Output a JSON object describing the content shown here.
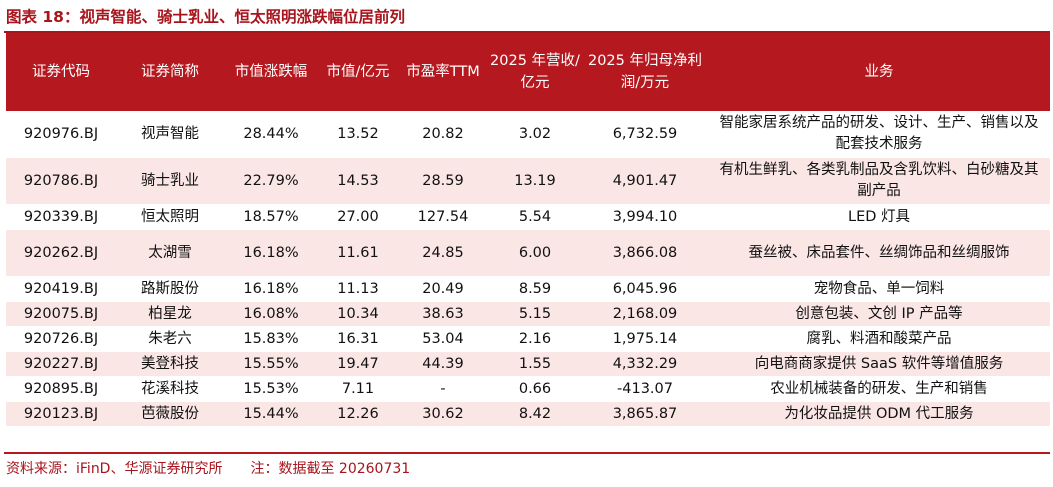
{
  "title": "图表 18：视声智能、骑士乳业、恒太照明涨跌幅位居前列",
  "table": {
    "headers": [
      "证券代码",
      "证券简称",
      "市值涨跌幅",
      "市值/亿元",
      "市盈率TTM",
      "2025 年营收/亿元",
      "2025 年归母净利润/万元",
      "业务"
    ],
    "rows": [
      {
        "code": "920976.BJ",
        "name": "视声智能",
        "change": "28.44%",
        "mktcap": "13.52",
        "pe": "20.82",
        "revenue": "3.02",
        "profit": "6,732.59",
        "business": "智能家居系统产品的研发、设计、生产、销售以及配套技术服务"
      },
      {
        "code": "920786.BJ",
        "name": "骑士乳业",
        "change": "22.79%",
        "mktcap": "14.53",
        "pe": "28.59",
        "revenue": "13.19",
        "profit": "4,901.47",
        "business": "有机生鲜乳、各类乳制品及含乳饮料、白砂糖及其副产品"
      },
      {
        "code": "920339.BJ",
        "name": "恒太照明",
        "change": "18.57%",
        "mktcap": "27.00",
        "pe": "127.54",
        "revenue": "5.54",
        "profit": "3,994.10",
        "business": "LED 灯具"
      },
      {
        "code": "920262.BJ",
        "name": "太湖雪",
        "change": "16.18%",
        "mktcap": "11.61",
        "pe": "24.85",
        "revenue": "6.00",
        "profit": "3,866.08",
        "business": "蚕丝被、床品套件、丝绸饰品和丝绸服饰"
      },
      {
        "code": "920419.BJ",
        "name": "路斯股份",
        "change": "16.18%",
        "mktcap": "11.13",
        "pe": "20.49",
        "revenue": "8.59",
        "profit": "6,045.96",
        "business": "宠物食品、单一饲料"
      },
      {
        "code": "920075.BJ",
        "name": "柏星龙",
        "change": "16.08%",
        "mktcap": "10.34",
        "pe": "38.63",
        "revenue": "5.15",
        "profit": "2,168.09",
        "business": "创意包装、文创 IP 产品等"
      },
      {
        "code": "920726.BJ",
        "name": "朱老六",
        "change": "15.83%",
        "mktcap": "16.31",
        "pe": "53.04",
        "revenue": "2.16",
        "profit": "1,975.14",
        "business": "腐乳、料酒和酸菜产品"
      },
      {
        "code": "920227.BJ",
        "name": "美登科技",
        "change": "15.55%",
        "mktcap": "19.47",
        "pe": "44.39",
        "revenue": "1.55",
        "profit": "4,332.29",
        "business": "向电商商家提供 SaaS 软件等增值服务"
      },
      {
        "code": "920895.BJ",
        "name": "花溪科技",
        "change": "15.53%",
        "mktcap": "7.11",
        "pe": "-",
        "revenue": "0.66",
        "profit": "-413.07",
        "business": "农业机械装备的研发、生产和销售"
      },
      {
        "code": "920123.BJ",
        "name": "芭薇股份",
        "change": "15.44%",
        "mktcap": "12.26",
        "pe": "30.62",
        "revenue": "8.42",
        "profit": "3,865.87",
        "business": "为化妆品提供 ODM 代工服务"
      }
    ]
  },
  "footer": {
    "source": "资料来源：iFinD、华源证券研究所",
    "note": "注：数据截至 20260731"
  },
  "colors": {
    "brand_red": "#b5181e",
    "title_red": "#a8141c",
    "stripe_pink": "#fbe6e6"
  }
}
